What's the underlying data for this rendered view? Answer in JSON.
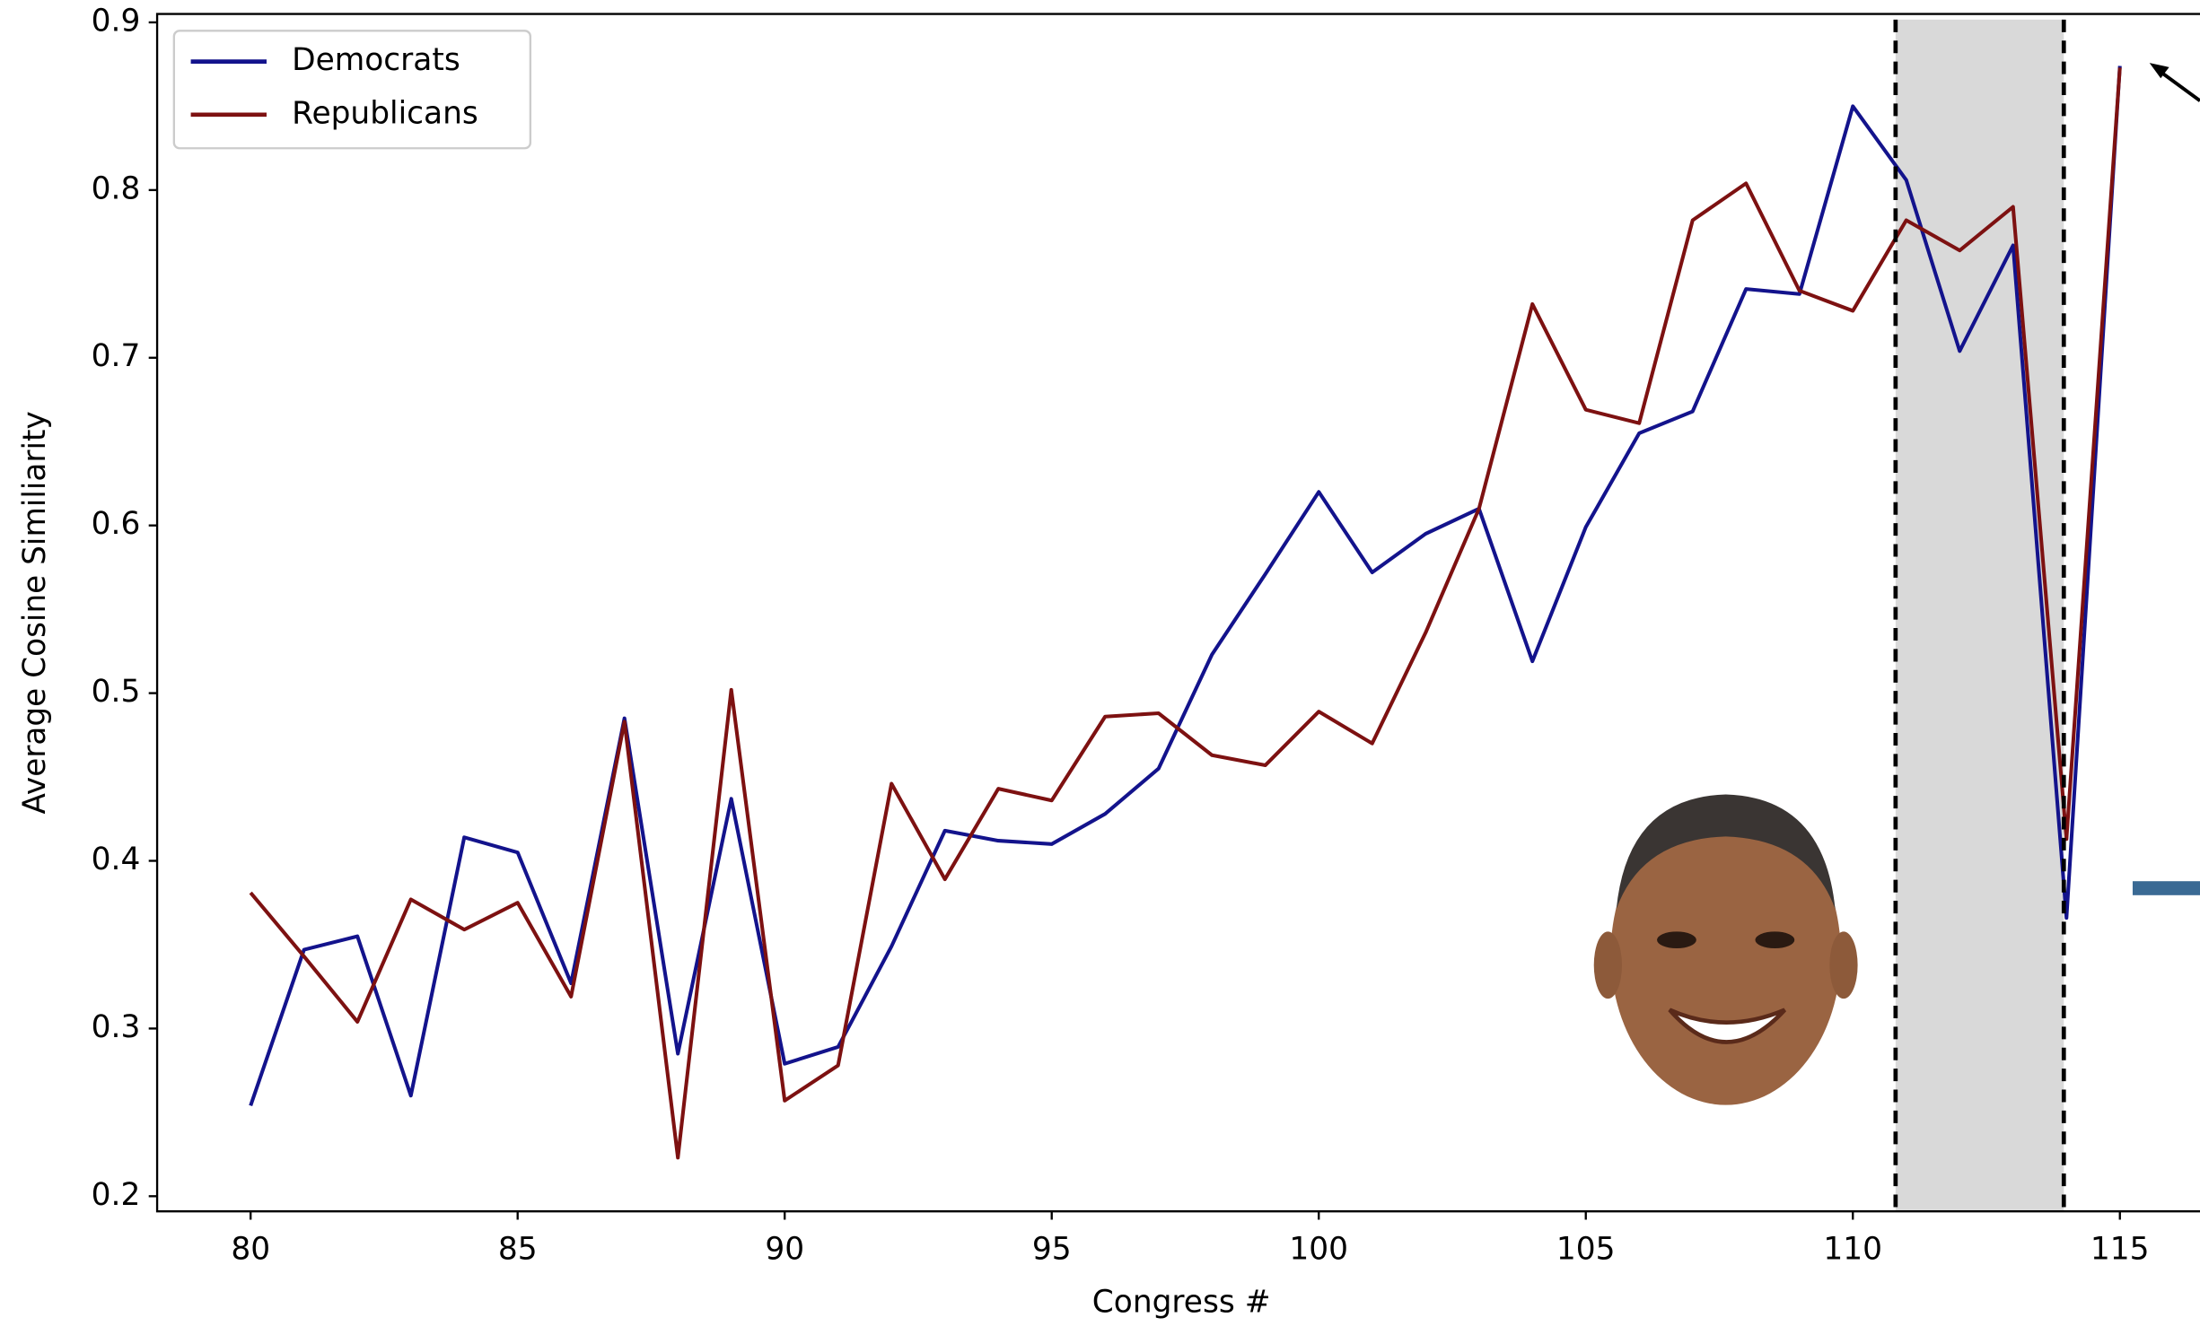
{
  "chart_data": {
    "type": "line",
    "x_label": "Congress #",
    "y_label": "Average Cosine Similiarity",
    "x": [
      80,
      81,
      82,
      83,
      84,
      85,
      86,
      87,
      88,
      89,
      90,
      91,
      92,
      93,
      94,
      95,
      96,
      97,
      98,
      99,
      100,
      101,
      102,
      103,
      104,
      105,
      106,
      107,
      108,
      109,
      110,
      111,
      112,
      113,
      114,
      115
    ],
    "series": [
      {
        "name": "Democrats",
        "color": "#13138c",
        "values": [
          0.254,
          0.347,
          0.355,
          0.26,
          0.414,
          0.405,
          0.327,
          0.485,
          0.285,
          0.437,
          0.279,
          0.289,
          0.349,
          0.418,
          0.412,
          0.41,
          0.428,
          0.455,
          0.523,
          0.571,
          0.62,
          0.572,
          0.595,
          0.61,
          0.519,
          0.599,
          0.655,
          0.668,
          0.741,
          0.738,
          0.85,
          0.806,
          0.704,
          0.767,
          0.366,
          0.874
        ]
      },
      {
        "name": "Republicans",
        "color": "#7d1111",
        "values": [
          0.381,
          0.343,
          0.304,
          0.377,
          0.359,
          0.375,
          0.319,
          0.483,
          0.223,
          0.502,
          0.257,
          0.278,
          0.446,
          0.389,
          0.443,
          0.436,
          0.486,
          0.488,
          0.463,
          0.457,
          0.489,
          0.47,
          0.536,
          0.61,
          0.732,
          0.669,
          0.661,
          0.782,
          0.804,
          0.74,
          0.728,
          0.782,
          0.764,
          0.79,
          0.413,
          0.873
        ]
      }
    ],
    "xlim": [
      78.25,
      116.5
    ],
    "ylim": [
      0.191,
      0.905
    ],
    "xticks": [
      80,
      85,
      90,
      95,
      100,
      105,
      110,
      115
    ],
    "yticks": [
      0.2,
      0.3,
      0.4,
      0.5,
      0.6,
      0.7,
      0.8,
      0.9
    ],
    "highlight_x": [
      110.8,
      113.95
    ],
    "legend": "upper-left"
  }
}
